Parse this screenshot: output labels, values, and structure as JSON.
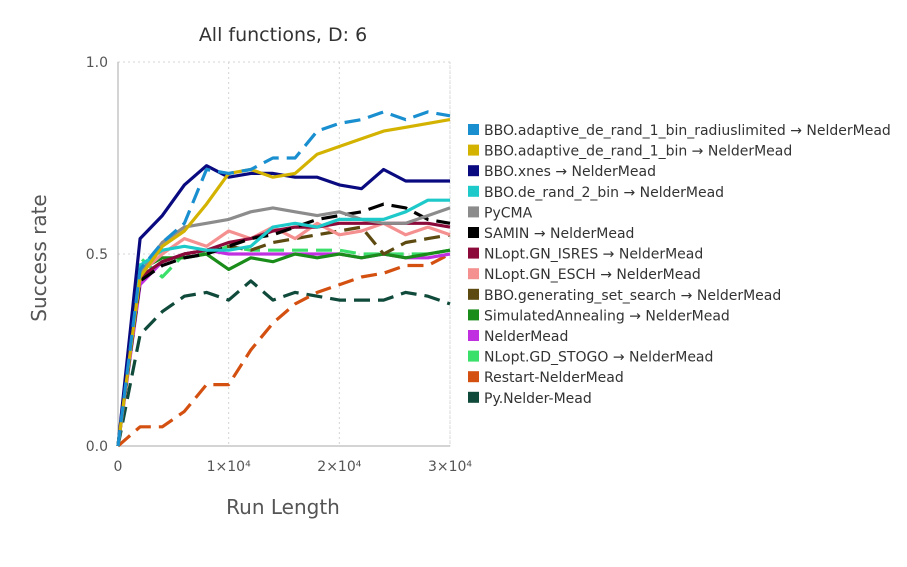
{
  "chart_data": {
    "type": "line",
    "title": "All functions, D: 6",
    "xlabel": "Run Length",
    "ylabel": "Success rate",
    "xlim": [
      0,
      30000
    ],
    "ylim": [
      0,
      1
    ],
    "xticks": [
      {
        "v": 0,
        "label": "0"
      },
      {
        "v": 10000,
        "label": "1×10⁴"
      },
      {
        "v": 20000,
        "label": "2×10⁴"
      },
      {
        "v": 30000,
        "label": "3×10⁴"
      }
    ],
    "yticks": [
      {
        "v": 0,
        "label": "0.0"
      },
      {
        "v": 0.5,
        "label": "0.5"
      },
      {
        "v": 1,
        "label": "1.0"
      }
    ],
    "grid": true,
    "legend": "right",
    "x": [
      0,
      2000,
      4000,
      6000,
      8000,
      10000,
      12000,
      14000,
      16000,
      18000,
      20000,
      22000,
      24000,
      26000,
      28000,
      30000
    ],
    "series": [
      {
        "name": "BBO.adaptive_de_rand_1_bin_radiuslimited → NelderMead",
        "color": "#1a8fd0",
        "dash": true,
        "values": [
          0,
          0.46,
          0.53,
          0.58,
          0.72,
          0.71,
          0.72,
          0.75,
          0.75,
          0.82,
          0.84,
          0.85,
          0.87,
          0.85,
          0.87,
          0.86
        ]
      },
      {
        "name": "BBO.adaptive_de_rand_1_bin → NelderMead",
        "color": "#d4b300",
        "dash": false,
        "values": [
          0,
          0.44,
          0.52,
          0.56,
          0.63,
          0.71,
          0.72,
          0.7,
          0.71,
          0.76,
          0.78,
          0.8,
          0.82,
          0.83,
          0.84,
          0.85
        ]
      },
      {
        "name": "BBO.xnes → NelderMead",
        "color": "#0a0a80",
        "dash": false,
        "values": [
          0,
          0.54,
          0.6,
          0.68,
          0.73,
          0.7,
          0.71,
          0.71,
          0.7,
          0.7,
          0.68,
          0.67,
          0.72,
          0.69,
          0.69,
          0.69
        ]
      },
      {
        "name": "BBO.de_rand_2_bin → NelderMead",
        "color": "#1ec9c9",
        "dash": false,
        "values": [
          0,
          0.47,
          0.51,
          0.52,
          0.51,
          0.51,
          0.52,
          0.57,
          0.58,
          0.57,
          0.59,
          0.59,
          0.59,
          0.61,
          0.64,
          0.64
        ]
      },
      {
        "name": "PyCMA",
        "color": "#8c8c8c",
        "dash": false,
        "values": [
          0,
          0.45,
          0.53,
          0.57,
          0.58,
          0.59,
          0.61,
          0.62,
          0.61,
          0.6,
          0.61,
          0.59,
          0.58,
          0.58,
          0.6,
          0.62
        ]
      },
      {
        "name": "SAMIN → NelderMead",
        "color": "#000000",
        "dash": true,
        "values": [
          0,
          0.43,
          0.47,
          0.49,
          0.5,
          0.52,
          0.54,
          0.55,
          0.57,
          0.59,
          0.6,
          0.61,
          0.63,
          0.62,
          0.59,
          0.58
        ]
      },
      {
        "name": "NLopt.GN_ISRES → NelderMead",
        "color": "#8c0a3a",
        "dash": false,
        "values": [
          0,
          0.44,
          0.48,
          0.5,
          0.51,
          0.53,
          0.54,
          0.56,
          0.57,
          0.57,
          0.58,
          0.58,
          0.58,
          0.58,
          0.58,
          0.57
        ]
      },
      {
        "name": "NLopt.GN_ESCH → NelderMead",
        "color": "#f59090",
        "dash": false,
        "values": [
          0,
          0.45,
          0.5,
          0.54,
          0.52,
          0.56,
          0.54,
          0.57,
          0.54,
          0.58,
          0.55,
          0.56,
          0.58,
          0.55,
          0.57,
          0.55
        ]
      },
      {
        "name": "BBO.generating_set_search → NelderMead",
        "color": "#5c4a10",
        "dash": true,
        "values": [
          0,
          0.44,
          0.48,
          0.5,
          0.51,
          0.52,
          0.51,
          0.53,
          0.54,
          0.55,
          0.56,
          0.57,
          0.5,
          0.53,
          0.54,
          0.55
        ]
      },
      {
        "name": "SimulatedAnnealing → NelderMead",
        "color": "#1a8c1a",
        "dash": false,
        "values": [
          0,
          0.46,
          0.49,
          0.49,
          0.5,
          0.46,
          0.49,
          0.48,
          0.5,
          0.49,
          0.5,
          0.49,
          0.5,
          0.49,
          0.5,
          0.51
        ]
      },
      {
        "name": "NelderMead",
        "color": "#c030e0",
        "dash": false,
        "values": [
          0,
          0.42,
          0.48,
          0.5,
          0.51,
          0.5,
          0.5,
          0.5,
          0.5,
          0.5,
          0.5,
          0.49,
          0.5,
          0.49,
          0.49,
          0.5
        ]
      },
      {
        "name": "NLopt.GD_STOGO → NelderMead",
        "color": "#3ae06a",
        "dash": true,
        "values": [
          0,
          0.49,
          0.44,
          0.5,
          0.5,
          0.52,
          0.51,
          0.51,
          0.51,
          0.51,
          0.51,
          0.5,
          0.5,
          0.5,
          0.5,
          0.51
        ]
      },
      {
        "name": "Restart-NelderMead",
        "color": "#d45010",
        "dash": true,
        "values": [
          0,
          0.05,
          0.05,
          0.09,
          0.16,
          0.16,
          0.25,
          0.32,
          0.37,
          0.4,
          0.42,
          0.44,
          0.45,
          0.47,
          0.47,
          0.5
        ]
      },
      {
        "name": "Py.Nelder-Mead",
        "color": "#104a3a",
        "dash": true,
        "values": [
          0,
          0.29,
          0.35,
          0.39,
          0.4,
          0.38,
          0.43,
          0.38,
          0.4,
          0.39,
          0.38,
          0.38,
          0.38,
          0.4,
          0.39,
          0.37
        ]
      }
    ]
  }
}
